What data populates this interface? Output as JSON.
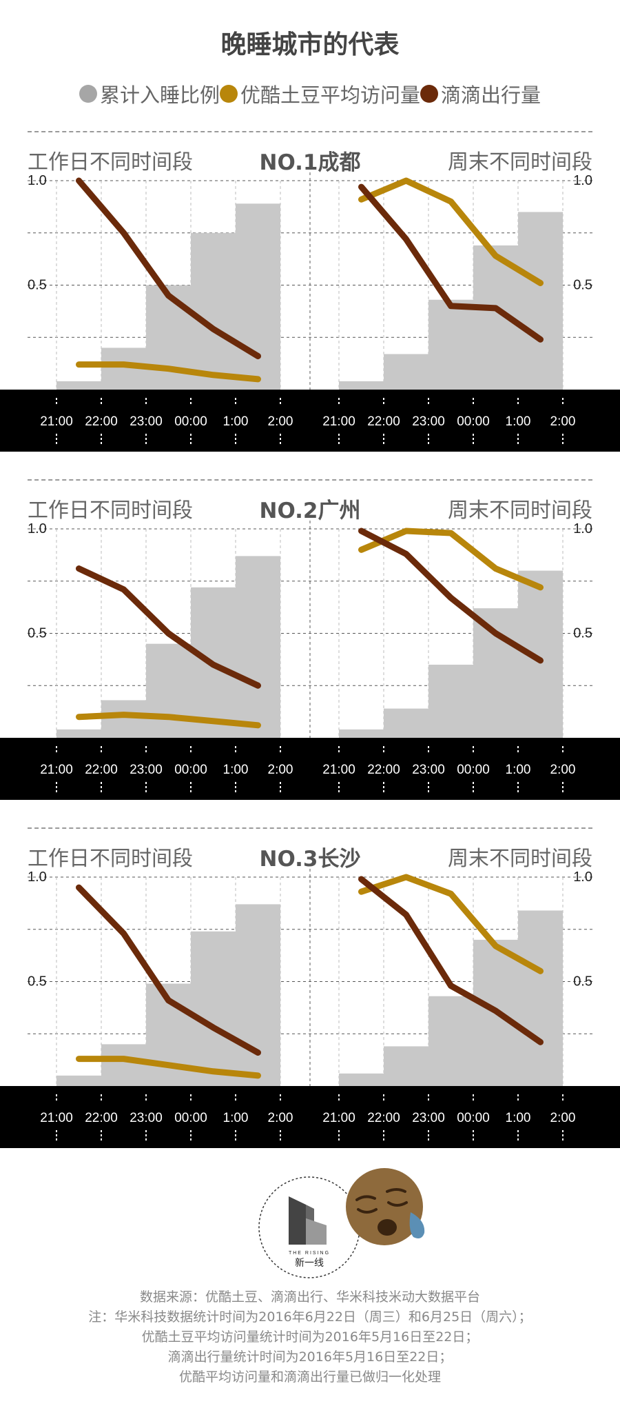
{
  "title": "晚睡城市的代表",
  "legend": [
    {
      "label": "累计入睡比例",
      "color": "#a6a6a6"
    },
    {
      "label": "优酷土豆平均访问量",
      "color": "#b8860b"
    },
    {
      "label": "滴滴出行量",
      "color": "#6b2a0a"
    }
  ],
  "panel_headers": {
    "weekday": "工作日不同时间段",
    "weekend": "周末不同时间段"
  },
  "chart_data": [
    {
      "type": "bar+line",
      "city_label": "NO.1成都",
      "x_ticks": [
        "21:00",
        "22:00",
        "23:00",
        "00:00",
        "1:00",
        "2:00"
      ],
      "y_ticks": [
        "1.0",
        "0.5"
      ],
      "ylim": [
        0,
        1.0
      ],
      "weekday": {
        "sleep_ratio": [
          0.04,
          0.2,
          0.5,
          0.75,
          0.89
        ],
        "video_visits": [
          0.12,
          0.12,
          0.1,
          0.07,
          0.05
        ],
        "didi_trips": [
          1.0,
          0.75,
          0.45,
          0.29,
          0.16
        ]
      },
      "weekend": {
        "sleep_ratio": [
          0.04,
          0.17,
          0.43,
          0.69,
          0.85
        ],
        "video_visits": [
          0.91,
          1.0,
          0.9,
          0.64,
          0.51
        ],
        "didi_trips": [
          0.97,
          0.72,
          0.4,
          0.39,
          0.24
        ]
      }
    },
    {
      "type": "bar+line",
      "city_label": "NO.2广州",
      "x_ticks": [
        "21:00",
        "22:00",
        "23:00",
        "00:00",
        "1:00",
        "2:00"
      ],
      "y_ticks": [
        "1.0",
        "0.5"
      ],
      "ylim": [
        0,
        1.0
      ],
      "weekday": {
        "sleep_ratio": [
          0.04,
          0.18,
          0.45,
          0.72,
          0.87
        ],
        "video_visits": [
          0.1,
          0.11,
          0.1,
          0.08,
          0.06
        ],
        "didi_trips": [
          0.81,
          0.71,
          0.5,
          0.35,
          0.25
        ]
      },
      "weekend": {
        "sleep_ratio": [
          0.04,
          0.14,
          0.35,
          0.62,
          0.8
        ],
        "video_visits": [
          0.9,
          0.99,
          0.98,
          0.81,
          0.72
        ],
        "didi_trips": [
          0.99,
          0.88,
          0.67,
          0.5,
          0.37
        ]
      }
    },
    {
      "type": "bar+line",
      "city_label": "NO.3长沙",
      "x_ticks": [
        "21:00",
        "22:00",
        "23:00",
        "00:00",
        "1:00",
        "2:00"
      ],
      "y_ticks": [
        "1.0",
        "0.5"
      ],
      "ylim": [
        0,
        1.0
      ],
      "weekday": {
        "sleep_ratio": [
          0.05,
          0.2,
          0.49,
          0.74,
          0.87
        ],
        "video_visits": [
          0.13,
          0.13,
          0.1,
          0.07,
          0.05
        ],
        "didi_trips": [
          0.95,
          0.73,
          0.41,
          0.28,
          0.16
        ]
      },
      "weekend": {
        "sleep_ratio": [
          0.06,
          0.19,
          0.43,
          0.7,
          0.84
        ],
        "video_visits": [
          0.93,
          1.0,
          0.92,
          0.67,
          0.55
        ],
        "didi_trips": [
          0.99,
          0.82,
          0.48,
          0.36,
          0.21
        ]
      }
    }
  ],
  "logo": {
    "brand_en": "THE RISING",
    "brand_cn": "新一线"
  },
  "footer": [
    "数据来源：优酷土豆、滴滴出行、华米科技米动大数据平台",
    "注：华米科技数据统计时间为2016年6月22日（周三）和6月25日（周六）；",
    "优酷土豆平均访问量统计时间为2016年5月16日至22日；",
    "滴滴出行量统计时间为2016年5月16日至22日；",
    "优酷平均访问量和滴滴出行量已做归一化处理"
  ],
  "colors": {
    "bar": "#c8c8c8",
    "video": "#b8860b",
    "didi": "#6b2a0a",
    "band": "#000000"
  }
}
